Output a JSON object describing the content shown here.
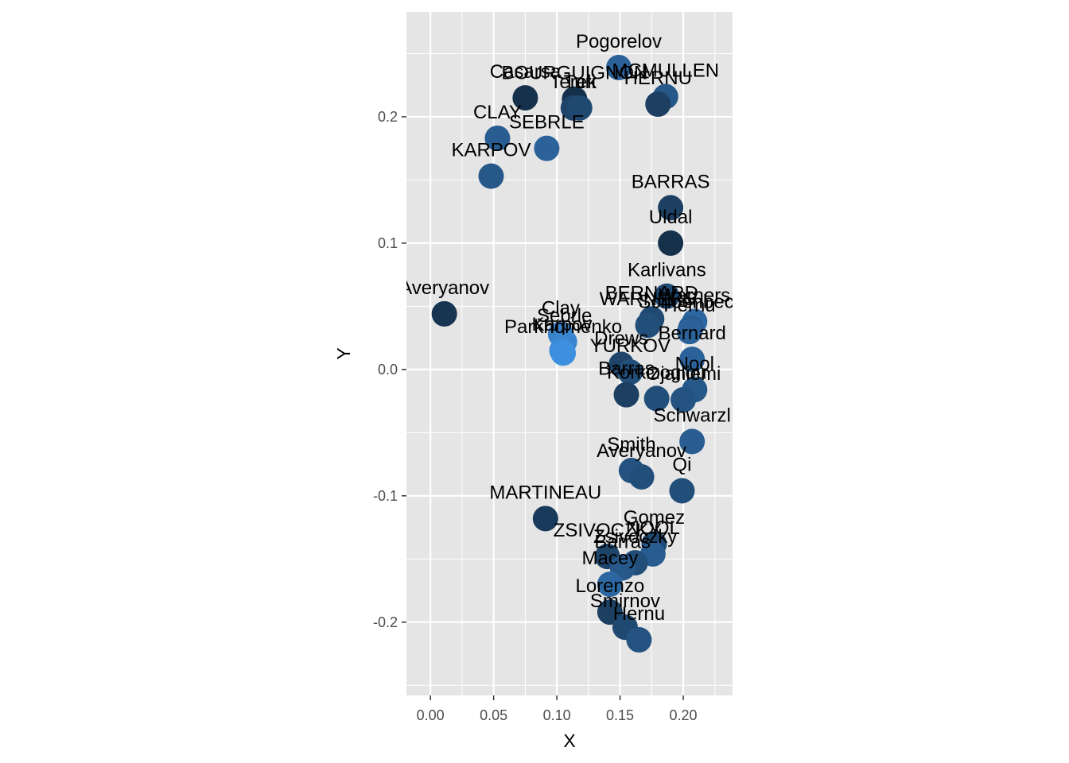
{
  "chart_data": {
    "type": "scatter",
    "xlabel": "X",
    "ylabel": "Y",
    "xlim": [
      -0.019,
      0.239
    ],
    "ylim": [
      -0.258,
      0.283
    ],
    "x_ticks": [
      0.0,
      0.05,
      0.1,
      0.15,
      0.2
    ],
    "x_tick_labels": [
      "0.00",
      "0.05",
      "0.10",
      "0.15",
      "0.20"
    ],
    "y_ticks": [
      -0.2,
      -0.1,
      0.0,
      0.1,
      0.2
    ],
    "y_tick_labels": [
      "-0.2",
      "-0.1",
      "0.0",
      "0.1",
      "0.2"
    ],
    "grid": true,
    "colors": {
      "panel": "#e5e5e5",
      "grid": "#ffffff",
      "dark": "#132b43",
      "light": "#3e8fe0"
    },
    "points": [
      {
        "label": "Pogorelov",
        "x": 0.149,
        "y": 0.239,
        "shade": 0.55
      },
      {
        "label": "BOURGUIGNON",
        "x": 0.114,
        "y": 0.214,
        "shade": 0.05
      },
      {
        "label": "Casarsa",
        "x": 0.075,
        "y": 0.215,
        "shade": 0.05
      },
      {
        "label": "Terek",
        "x": 0.113,
        "y": 0.207,
        "shade": 0.25
      },
      {
        "label": "Turi",
        "x": 0.118,
        "y": 0.207,
        "shade": 0.3
      },
      {
        "label": "MCMULLEN",
        "x": 0.186,
        "y": 0.216,
        "shade": 0.45
      },
      {
        "label": "HERNU",
        "x": 0.18,
        "y": 0.21,
        "shade": 0.2
      },
      {
        "label": "CLAY",
        "x": 0.053,
        "y": 0.183,
        "shade": 0.5
      },
      {
        "label": "SEBRLE",
        "x": 0.092,
        "y": 0.175,
        "shade": 0.55
      },
      {
        "label": "KARPOV",
        "x": 0.048,
        "y": 0.153,
        "shade": 0.45
      },
      {
        "label": "BARRAS",
        "x": 0.19,
        "y": 0.128,
        "shade": 0.2
      },
      {
        "label": "Uldal",
        "x": 0.19,
        "y": 0.1,
        "shade": 0.05
      },
      {
        "label": "Karlivans",
        "x": 0.187,
        "y": 0.058,
        "shade": 0.3
      },
      {
        "label": "BERNARD",
        "x": 0.175,
        "y": 0.04,
        "shade": 0.3
      },
      {
        "label": "WARNERS",
        "x": 0.172,
        "y": 0.035,
        "shade": 0.35
      },
      {
        "label": "Warners",
        "x": 0.209,
        "y": 0.038,
        "shade": 0.6
      },
      {
        "label": "Schoenbeck",
        "x": 0.206,
        "y": 0.033,
        "shade": 0.5
      },
      {
        "label": "Hernu",
        "x": 0.205,
        "y": 0.03,
        "shade": 0.55
      },
      {
        "label": "Averyanov",
        "x": 0.011,
        "y": 0.044,
        "shade": 0.1
      },
      {
        "label": "Clay",
        "x": 0.103,
        "y": 0.028,
        "shade": 0.85
      },
      {
        "label": "Sebrle",
        "x": 0.106,
        "y": 0.022,
        "shade": 0.9
      },
      {
        "label": "Karpov",
        "x": 0.104,
        "y": 0.015,
        "shade": 0.95
      },
      {
        "label": "Parkhomenko",
        "x": 0.105,
        "y": 0.013,
        "shade": 1.0
      },
      {
        "label": "Bernard",
        "x": 0.207,
        "y": 0.008,
        "shade": 0.55
      },
      {
        "label": "Drews",
        "x": 0.151,
        "y": 0.004,
        "shade": 0.25
      },
      {
        "label": "YURKOV",
        "x": 0.158,
        "y": -0.002,
        "shade": 0.35
      },
      {
        "label": "Nool",
        "x": 0.209,
        "y": -0.016,
        "shade": 0.45
      },
      {
        "label": "Ojaniemi",
        "x": 0.2,
        "y": -0.024,
        "shade": 0.4
      },
      {
        "label": "Barras",
        "x": 0.155,
        "y": -0.02,
        "shade": 0.2
      },
      {
        "label": "Korkizoglou",
        "x": 0.179,
        "y": -0.023,
        "shade": 0.35
      },
      {
        "label": "Schwarzl",
        "x": 0.207,
        "y": -0.057,
        "shade": 0.5
      },
      {
        "label": "Smith",
        "x": 0.159,
        "y": -0.08,
        "shade": 0.4
      },
      {
        "label": "Averyanov",
        "x": 0.167,
        "y": -0.085,
        "shade": 0.35
      },
      {
        "label": "Qi",
        "x": 0.199,
        "y": -0.096,
        "shade": 0.35
      },
      {
        "label": "MARTINEAU",
        "x": 0.091,
        "y": -0.118,
        "shade": 0.15
      },
      {
        "label": "Gomez",
        "x": 0.177,
        "y": -0.138,
        "shade": 0.3
      },
      {
        "label": "NOOL",
        "x": 0.176,
        "y": -0.146,
        "shade": 0.5
      },
      {
        "label": "ZSIVOCZKY",
        "x": 0.14,
        "y": -0.148,
        "shade": 0.25
      },
      {
        "label": "Zsivoczky",
        "x": 0.162,
        "y": -0.153,
        "shade": 0.35
      },
      {
        "label": "Barras",
        "x": 0.152,
        "y": -0.157,
        "shade": 0.45
      },
      {
        "label": "Macey",
        "x": 0.142,
        "y": -0.17,
        "shade": 0.6
      },
      {
        "label": "Lorenzo",
        "x": 0.142,
        "y": -0.192,
        "shade": 0.2
      },
      {
        "label": "Smirnov",
        "x": 0.154,
        "y": -0.204,
        "shade": 0.3
      },
      {
        "label": "Hernu",
        "x": 0.165,
        "y": -0.214,
        "shade": 0.4
      }
    ]
  }
}
